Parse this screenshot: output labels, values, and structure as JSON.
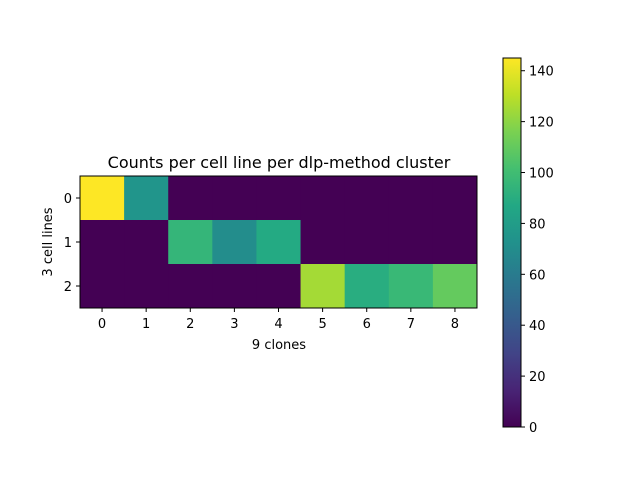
{
  "chart_data": {
    "type": "heatmap",
    "title": "Counts per cell line per dlp-method cluster",
    "xlabel": "9 clones",
    "ylabel": "3 cell lines",
    "x_categories": [
      "0",
      "1",
      "2",
      "3",
      "4",
      "5",
      "6",
      "7",
      "8"
    ],
    "y_categories": [
      "0",
      "1",
      "2"
    ],
    "values": [
      [
        145,
        75,
        0,
        0,
        0,
        0,
        0,
        0,
        0
      ],
      [
        0,
        0,
        95,
        70,
        88,
        0,
        0,
        0,
        0
      ],
      [
        0,
        0,
        0,
        0,
        0,
        125,
        90,
        97,
        110
      ]
    ],
    "colormap": "viridis",
    "colorbar": {
      "range": [
        0,
        145
      ],
      "ticks": [
        0,
        20,
        40,
        60,
        80,
        100,
        120,
        140
      ]
    }
  }
}
